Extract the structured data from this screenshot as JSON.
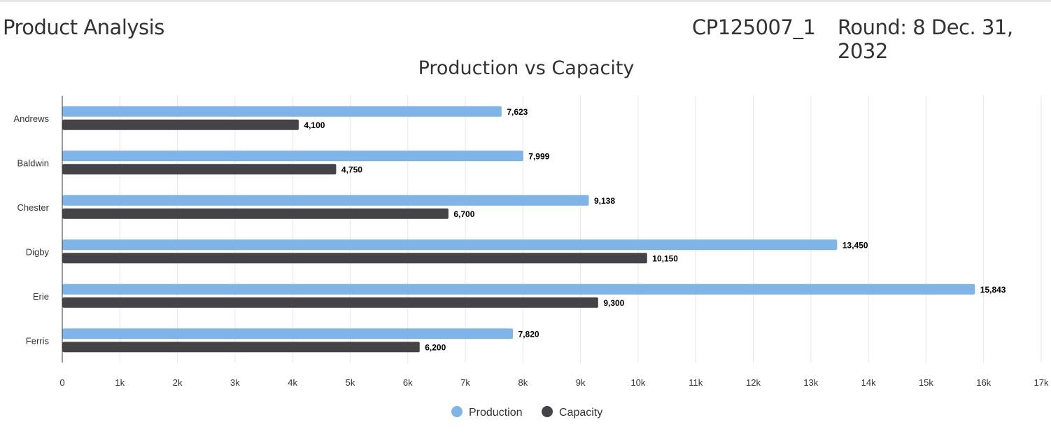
{
  "header": {
    "title": "Product Analysis",
    "company_code": "CP125007_1",
    "round": "Round: 8 Dec. 31, 2032"
  },
  "chart_data": {
    "type": "bar",
    "orientation": "horizontal",
    "title": "Production vs Capacity",
    "categories": [
      "Andrews",
      "Baldwin",
      "Chester",
      "Digby",
      "Erie",
      "Ferris"
    ],
    "series": [
      {
        "name": "Production",
        "color": "#7eb4e8",
        "values": [
          7623,
          7999,
          9138,
          13450,
          15843,
          7820
        ],
        "labels": [
          "7,623",
          "7,999",
          "9,138",
          "13,450",
          "15,843",
          "7,820"
        ]
      },
      {
        "name": "Capacity",
        "color": "#434348",
        "values": [
          4100,
          4750,
          6700,
          10150,
          9300,
          6200
        ],
        "labels": [
          "4,100",
          "4,750",
          "6,700",
          "10,150",
          "9,300",
          "6,200"
        ]
      }
    ],
    "xlim": [
      0,
      17000
    ],
    "xticks": [
      "0",
      "1k",
      "2k",
      "3k",
      "4k",
      "5k",
      "6k",
      "7k",
      "8k",
      "9k",
      "10k",
      "11k",
      "12k",
      "13k",
      "14k",
      "15k",
      "16k",
      "17k"
    ],
    "grid": true,
    "legend": "bottom-center"
  }
}
